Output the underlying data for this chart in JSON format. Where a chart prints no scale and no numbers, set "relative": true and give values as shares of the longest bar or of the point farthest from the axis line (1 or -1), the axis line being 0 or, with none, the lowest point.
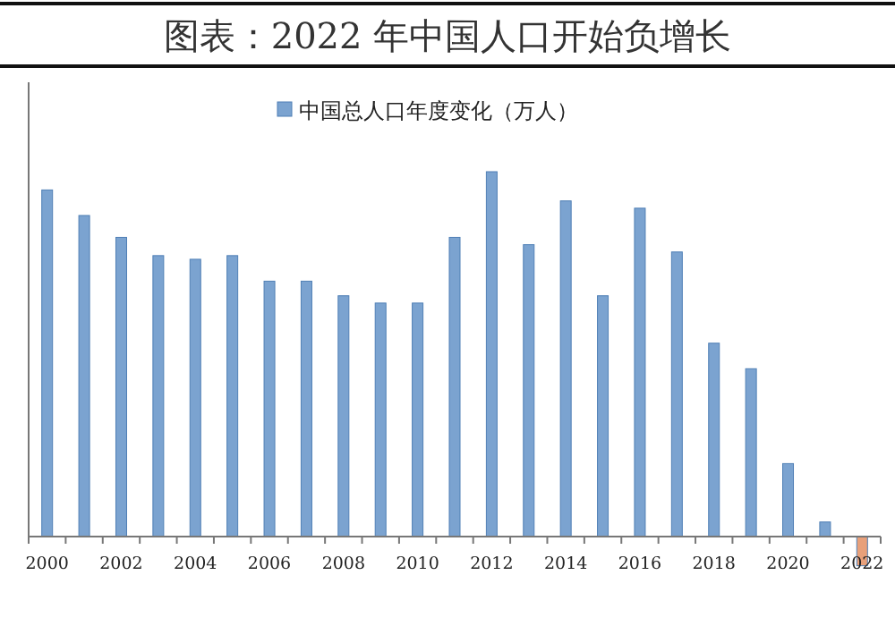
{
  "chart_data": {
    "type": "bar",
    "title": "图表：2022 年中国人口开始负增长",
    "relative": true,
    "legend": "top",
    "grid": false,
    "categories": [
      "2000",
      null,
      "2002",
      null,
      "2004",
      null,
      "2006",
      null,
      "2008",
      null,
      "2010",
      null,
      "2012",
      null,
      "2014",
      null,
      "2016",
      null,
      "2018",
      null,
      "2020",
      null,
      "2022"
    ],
    "series": [
      {
        "name": "中国总人口年度变化（万人）",
        "color": "#7ba3d0",
        "colors": [
          "#7ba3d0",
          "#7ba3d0",
          "#7ba3d0",
          "#7ba3d0",
          "#7ba3d0",
          "#7ba3d0",
          "#7ba3d0",
          "#7ba3d0",
          "#7ba3d0",
          "#7ba3d0",
          "#7ba3d0",
          "#7ba3d0",
          "#7ba3d0",
          "#7ba3d0",
          "#7ba3d0",
          "#7ba3d0",
          "#7ba3d0",
          "#7ba3d0",
          "#7ba3d0",
          "#7ba3d0",
          "#7ba3d0",
          "#7ba3d0",
          "#e8a07a"
        ],
        "values": [
          0.95,
          0.88,
          0.82,
          0.77,
          0.76,
          0.77,
          0.7,
          0.7,
          0.66,
          0.64,
          0.64,
          0.82,
          1,
          0.8,
          0.92,
          0.66,
          0.9,
          0.78,
          0.53,
          0.46,
          0.2,
          0.04,
          -0.08
        ]
      }
    ]
  }
}
